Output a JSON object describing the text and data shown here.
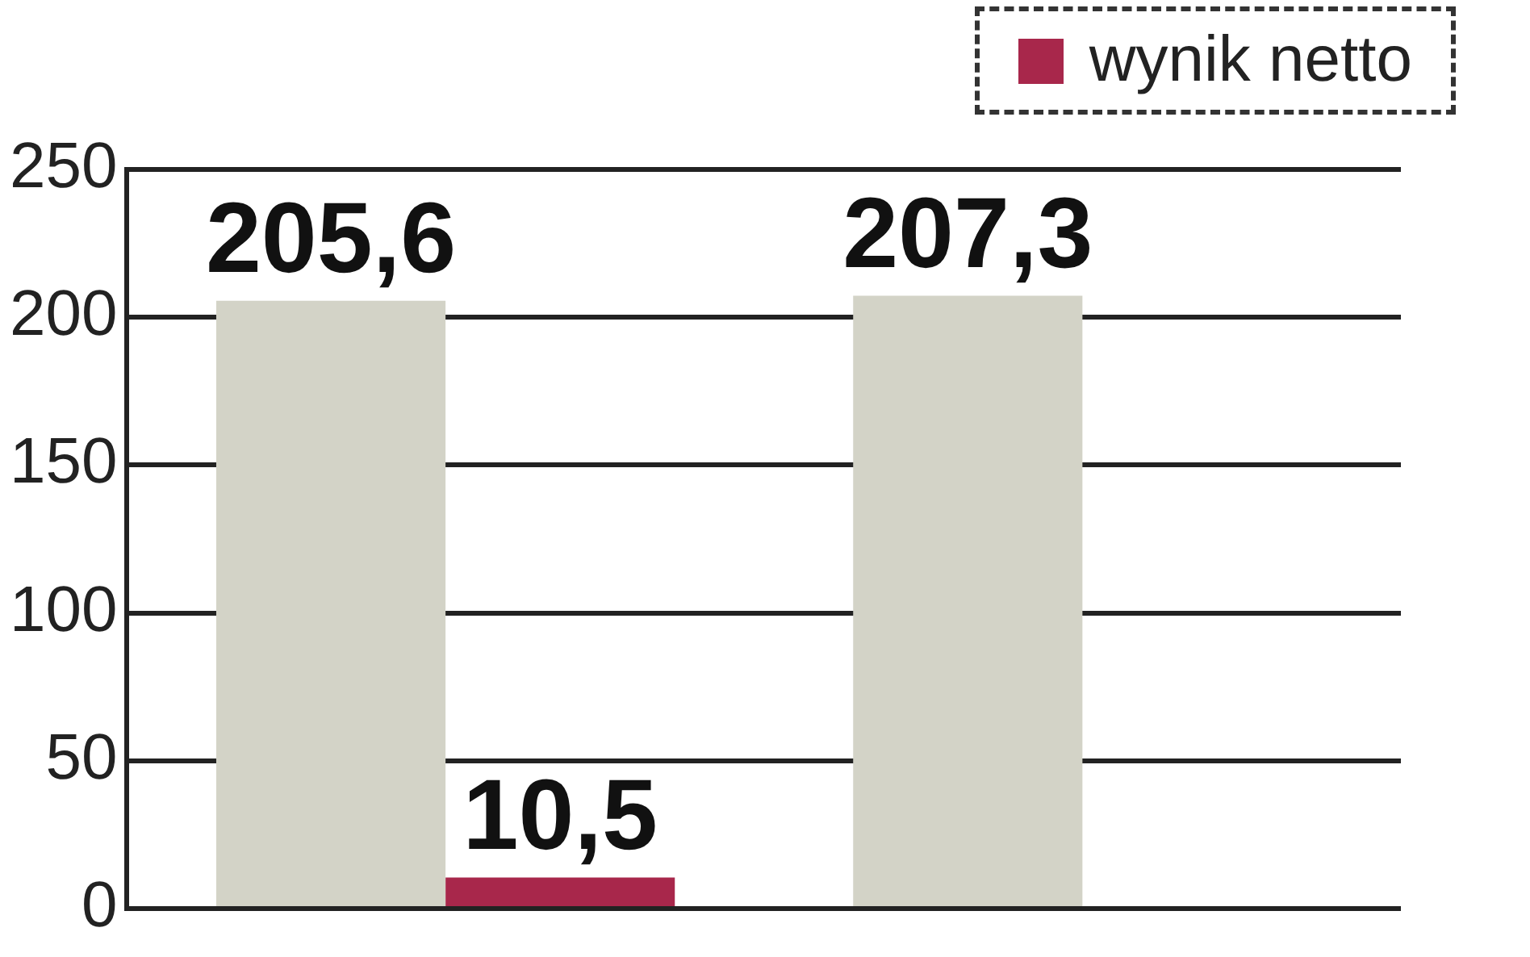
{
  "chart_data": {
    "type": "bar",
    "categories": [
      null,
      null
    ],
    "series": [
      {
        "color": "#d3d3c7",
        "values": [
          205.6,
          207.3
        ],
        "value_labels": [
          "205,6",
          "207,3"
        ]
      },
      {
        "name": "wynik netto",
        "color": "#a8274b",
        "values": [
          10.5,
          null
        ],
        "value_labels": [
          "10,5",
          null
        ]
      }
    ],
    "ylim": [
      0,
      250
    ],
    "yticks": [
      0,
      50,
      100,
      150,
      200,
      250
    ],
    "grid": "y",
    "legend": "top right"
  }
}
